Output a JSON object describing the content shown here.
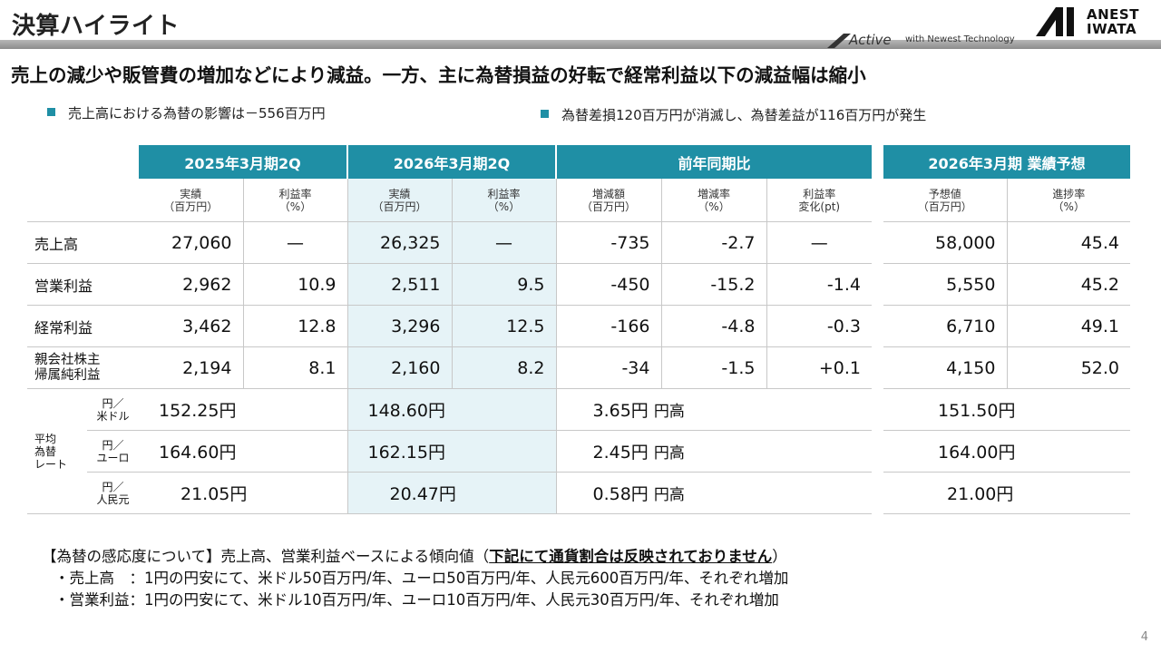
{
  "header": {
    "title": "決算ハイライト",
    "brand_active": "Active",
    "brand_tagline": "with Newest Technology",
    "logo_line1": "ANEST",
    "logo_line2": "IWATA"
  },
  "headline": "売上の減少や販管費の増加などにより減益。一方、主に為替損益の好転で経常利益以下の減益幅は縮小",
  "bullets": {
    "left": "売上高における為替の影響は－556百万円",
    "right": "為替差損120百万円が消滅し、為替差益が116百万円が発生"
  },
  "table": {
    "groups": {
      "fy2025": "2025年3月期2Q",
      "fy2026": "2026年3月期2Q",
      "yoy": "前年同期比",
      "forecast": "2026年3月期 業績予想"
    },
    "subheads": {
      "actual": "実績\n（百万円）",
      "margin": "利益率\n（%）",
      "diff_amt": "増減額\n（百万円）",
      "diff_rate": "増減率\n（%）",
      "margin_change": "利益率\n変化(pt)",
      "forecast_val": "予想値\n（百万円）",
      "progress": "進捗率\n（%）"
    },
    "rows": [
      {
        "label": "売上高",
        "a25": "27,060",
        "m25": "—",
        "a26": "26,325",
        "m26": "—",
        "diff": "-735",
        "rate": "-2.7",
        "mchg": "—",
        "fc": "58,000",
        "prog": "45.4"
      },
      {
        "label": "営業利益",
        "a25": "2,962",
        "m25": "10.9",
        "a26": "2,511",
        "m26": "9.5",
        "diff": "-450",
        "rate": "-15.2",
        "mchg": "-1.4",
        "fc": "5,550",
        "prog": "45.2"
      },
      {
        "label": "経常利益",
        "a25": "3,462",
        "m25": "12.8",
        "a26": "3,296",
        "m26": "12.5",
        "diff": "-166",
        "rate": "-4.8",
        "mchg": "-0.3",
        "fc": "6,710",
        "prog": "49.1"
      },
      {
        "label": "親会社株主\n帰属純利益",
        "a25": "2,194",
        "m25": "8.1",
        "a26": "2,160",
        "m26": "8.2",
        "diff": "-34",
        "rate": "-1.5",
        "mchg": "+0.1",
        "fc": "4,150",
        "prog": "52.0"
      }
    ],
    "fx_side_label": "平均\n為替\nレート",
    "fx_rows": [
      {
        "unit": "円／\n米ドル",
        "v25": "152.25円",
        "v26": "148.60円",
        "diff": "3.65円",
        "dir": "円高",
        "fc": "151.50円"
      },
      {
        "unit": "円／\nユーロ",
        "v25": "164.60円",
        "v26": "162.15円",
        "diff": "2.45円",
        "dir": "円高",
        "fc": "164.00円"
      },
      {
        "unit": "円／\n人民元",
        "v25": "21.05円",
        "v26": "20.47円",
        "diff": "0.58円",
        "dir": "円高",
        "fc": "21.00円"
      }
    ]
  },
  "notes": {
    "line1_prefix": "【為替の感応度について】売上高、営業利益ベースによる傾向値（",
    "line1_underlined": "下記にて通貨割合は反映されておりません",
    "line1_suffix": "）",
    "line2": "・売上高　：1円の円安にて、米ドル50百万円/年、ユーロ50百万円/年、人民元600百万円/年、それぞれ増加",
    "line3": "・営業利益：1円の円安にて、米ドル10百万円/年、ユーロ10百万円/年、人民元30百万円/年、それぞれ増加"
  },
  "page_number": "4",
  "colors": {
    "accent": "#1f8fa5",
    "shade": "#e6f3f7"
  }
}
